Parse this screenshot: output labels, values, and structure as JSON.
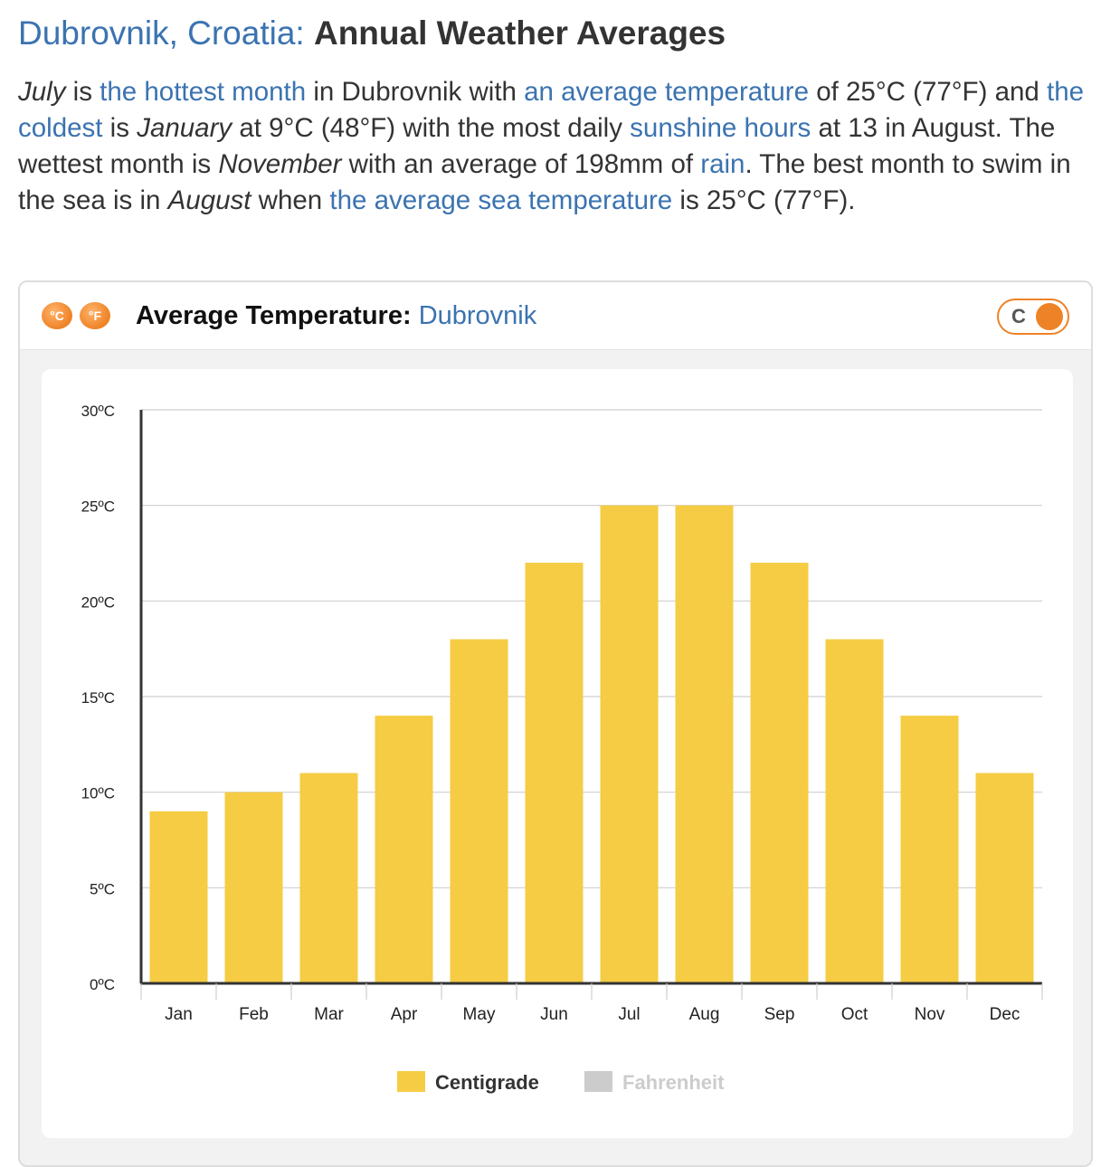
{
  "heading": {
    "city": "Dubrovnik, Croatia:",
    "title": "Annual Weather Averages"
  },
  "intro": {
    "p1": "July",
    "p2": " is ",
    "link_hottest": "the hottest month",
    "p3": " in Dubrovnik with ",
    "link_avg_temp": "an average temperature",
    "p4": " of 25°C (77°F) and ",
    "link_coldest": "the coldest",
    "p5": " is ",
    "p6": "January",
    "p7": " at 9°C (48°F) with the most daily ",
    "link_sunshine": "sunshine hours",
    "p8": " at 13 in August. The wettest month is ",
    "p9": "November",
    "p10": " with an average of 198mm of ",
    "link_rain": "rain",
    "p11": ". The best month to swim in the sea is in ",
    "p12": "August",
    "p13": " when ",
    "link_sea_temp": "the average sea temperature",
    "p14": " is 25°C (77°F)."
  },
  "card": {
    "icon_c": "°C",
    "icon_f": "°F",
    "title_label": "Average Temperature:",
    "title_place": "Dubrovnik",
    "toggle_label": "C"
  },
  "colors": {
    "link": "#3b73b0",
    "accent_orange": "#ee8226",
    "bar": "#f5cc43",
    "fahrenheit_disabled": "#cccccc"
  },
  "chart_data": {
    "type": "bar",
    "categories": [
      "Jan",
      "Feb",
      "Mar",
      "Apr",
      "May",
      "Jun",
      "Jul",
      "Aug",
      "Sep",
      "Oct",
      "Nov",
      "Dec"
    ],
    "series": [
      {
        "name": "Centigrade",
        "values": [
          9,
          10,
          11,
          14,
          18,
          22,
          25,
          25,
          22,
          18,
          14,
          11
        ],
        "active": true
      },
      {
        "name": "Fahrenheit",
        "active": false
      }
    ],
    "ylim": [
      0,
      30
    ],
    "yticks": [
      0,
      5,
      10,
      15,
      20,
      25,
      30
    ],
    "ytick_labels": [
      "0ºC",
      "5ºC",
      "10ºC",
      "15ºC",
      "20ºC",
      "25ºC",
      "30ºC"
    ],
    "grid": true,
    "legend": "bottom"
  }
}
